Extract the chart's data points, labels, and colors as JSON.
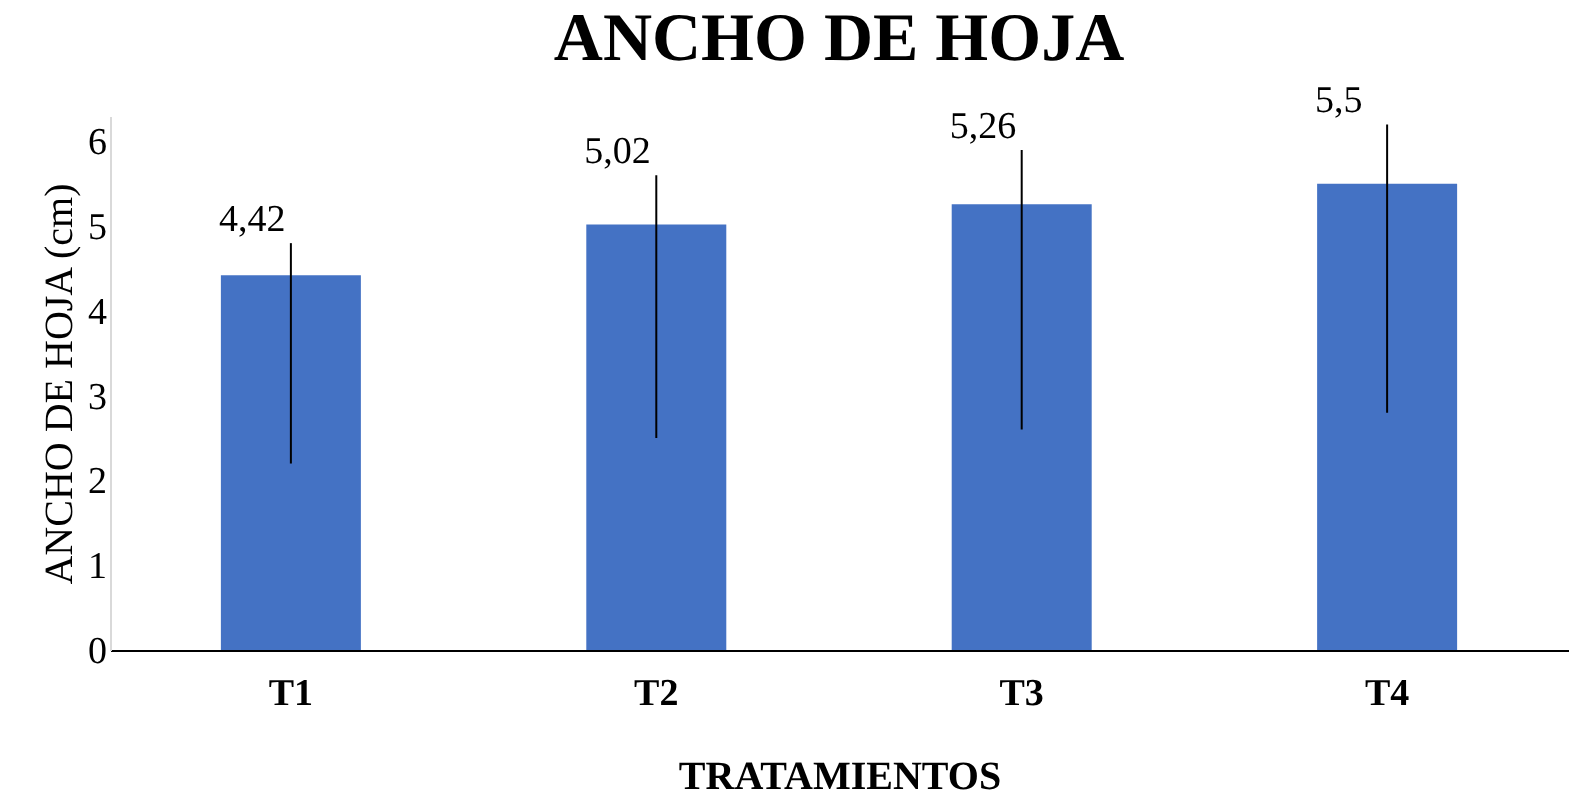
{
  "chart_data": {
    "type": "bar",
    "title": "ANCHO DE HOJA",
    "xlabel": "TRATAMIENTOS",
    "ylabel": "ANCHO DE HOJA (cm)",
    "categories": [
      "T1",
      "T2",
      "T3",
      "T4"
    ],
    "values": [
      4.42,
      5.02,
      5.26,
      5.5
    ],
    "color": "#4472c4",
    "errors": [
      [
        2.2,
        4.8
      ],
      [
        2.5,
        5.6
      ],
      [
        2.6,
        5.9
      ],
      [
        2.8,
        6.2
      ]
    ],
    "value_labels": [
      "4,42",
      "5,02",
      "5,26",
      "5,5"
    ],
    "ylim": [
      0,
      6.3
    ],
    "yticks": [
      0,
      1,
      2,
      3,
      4,
      5,
      6
    ],
    "grid": false
  }
}
